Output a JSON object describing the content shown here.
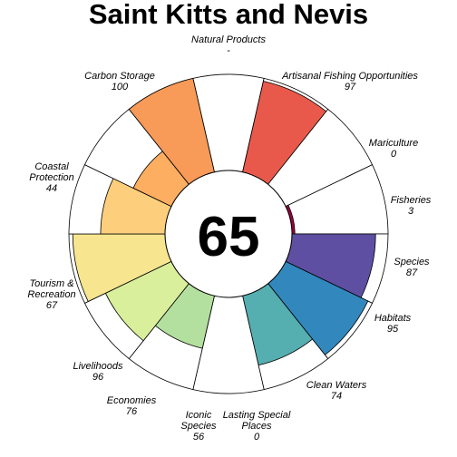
{
  "chart_data": {
    "type": "flower",
    "title": "Saint Kitts and Nevis",
    "center_score": "65",
    "ylim": [
      0,
      100
    ],
    "petals": [
      {
        "name": "Natural Products",
        "value": null,
        "label": "-",
        "color": "#e9534a"
      },
      {
        "name": "Artisanal Fishing Opportunities",
        "value": 97,
        "label": "97",
        "color": "#e9594b"
      },
      {
        "name": "Mariculture",
        "value": 0,
        "label": "0",
        "color": "#e06a4f"
      },
      {
        "name": "Fisheries",
        "value": 3,
        "label": "3",
        "color": "#9e0142"
      },
      {
        "name": "Species",
        "value": 87,
        "label": "87",
        "color": "#5e4fa2"
      },
      {
        "name": "Habitats",
        "value": 95,
        "label": "95",
        "color": "#3288bd"
      },
      {
        "name": "Clean Waters",
        "value": 74,
        "label": "74",
        "color": "#55aeb0"
      },
      {
        "name": "Lasting Special Places",
        "value": 0,
        "label": "0",
        "color": "#8fd0a4"
      },
      {
        "name": "Iconic Species",
        "value": 56,
        "label": "56",
        "color": "#b4e09f"
      },
      {
        "name": "Economies",
        "value": 76,
        "label": "76",
        "color": "#d9ef9b"
      },
      {
        "name": "Livelihoods",
        "value": 96,
        "label": "96",
        "color": "#f7e58f"
      },
      {
        "name": "Tourism & Recreation",
        "value": 67,
        "label": "67",
        "color": "#fdcf7c"
      },
      {
        "name": "Coastal Protection",
        "value": 44,
        "label": "44",
        "color": "#fdae61"
      },
      {
        "name": "Carbon Storage",
        "value": 100,
        "label": "100",
        "color": "#f89a58"
      }
    ]
  }
}
